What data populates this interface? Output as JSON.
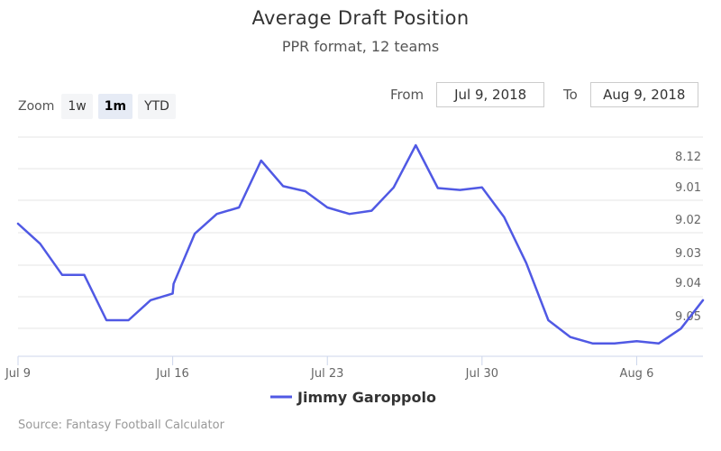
{
  "header": {
    "title": "Average Draft Position",
    "subtitle": "PPR format, 12 teams"
  },
  "zoom": {
    "label": "Zoom",
    "buttons": [
      "1w",
      "1m",
      "YTD"
    ],
    "active": "1m"
  },
  "range": {
    "from_label": "From",
    "from_value": "Jul 9, 2018",
    "to_label": "To",
    "to_value": "Aug 9, 2018"
  },
  "legend": {
    "label": "Jimmy Garoppolo"
  },
  "credits": "Source: Fantasy Football Calculator",
  "colors": {
    "series": "#5059e4",
    "grid": "#e6e6e6",
    "axis": "#ccd6eb"
  },
  "chart_data": {
    "type": "line",
    "title": "Average Draft Position",
    "subtitle": "PPR format, 12 teams",
    "series": [
      {
        "name": "Jimmy Garoppolo",
        "x": [
          "2018-07-09",
          "2018-07-10",
          "2018-07-11",
          "2018-07-12",
          "2018-07-13",
          "2018-07-14",
          "2018-07-15",
          "2018-07-16",
          "2018-07-16",
          "2018-07-17",
          "2018-07-18",
          "2018-07-19",
          "2018-07-20",
          "2018-07-21",
          "2018-07-22",
          "2018-07-23",
          "2018-07-24",
          "2018-07-25",
          "2018-07-26",
          "2018-07-27",
          "2018-07-28",
          "2018-07-29",
          "2018-07-30",
          "2018-07-31",
          "2018-08-01",
          "2018-08-02",
          "2018-08-03",
          "2018-08-04",
          "2018-08-05",
          "2018-08-06",
          "2018-08-07",
          "2018-08-08",
          "2018-08-09"
        ],
        "y": [
          9.02,
          9.026,
          9.036,
          9.036,
          9.05,
          9.05,
          9.044,
          9.042,
          9.039,
          9.023,
          9.017,
          9.015,
          8.12,
          9.002,
          9.01,
          9.015,
          9.017,
          9.016,
          9.004,
          8.115,
          9.005,
          9.008,
          9.004,
          9.018,
          9.032,
          9.05,
          9.058,
          9.061,
          9.061,
          9.06,
          9.061,
          9.054,
          9.044
        ]
      }
    ],
    "y_ticks": [
      "8.12",
      "9.01",
      "9.02",
      "9.03",
      "9.04",
      "9.05"
    ],
    "x_ticks": [
      "Jul 9",
      "Jul 16",
      "Jul 23",
      "Jul 30",
      "Aug 6"
    ],
    "grid": true,
    "legend_position": "bottom-center"
  }
}
